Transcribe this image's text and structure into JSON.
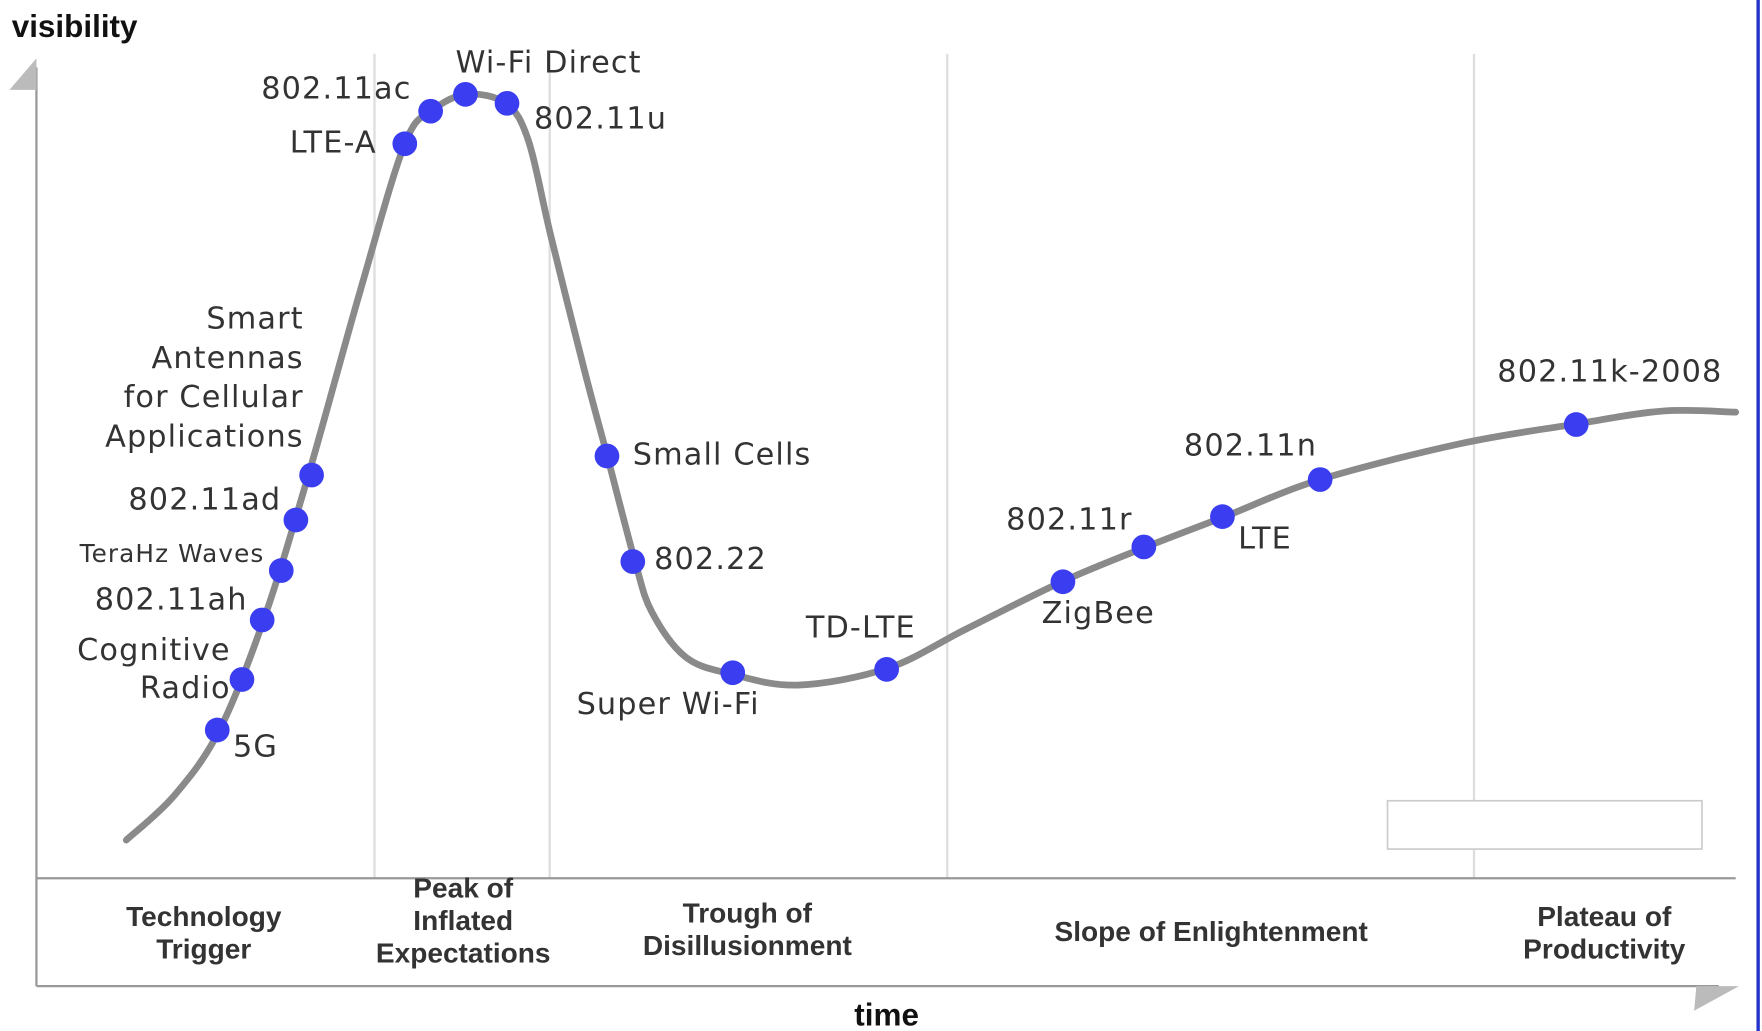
{
  "axes": {
    "y_label": "visibility",
    "x_label": "time"
  },
  "phases": [
    [
      "Technology",
      "Trigger"
    ],
    [
      "Peak of",
      "Inflated",
      "Expectations"
    ],
    [
      "Trough of",
      "Disillusionment"
    ],
    [
      "Slope of Enlightenment"
    ],
    [
      "Plateau of",
      "Productivity"
    ]
  ],
  "technologies": [
    [
      "5G"
    ],
    [
      "Cognitive",
      "Radio"
    ],
    [
      "802.11ah"
    ],
    [
      "TeraHz Waves"
    ],
    [
      "802.11ad"
    ],
    [
      "Smart",
      "Antennas",
      "for Cellular",
      "Applications"
    ],
    [
      "LTE-A"
    ],
    [
      "802.11ac"
    ],
    [
      "Wi-Fi Direct"
    ],
    [
      "802.11u"
    ],
    [
      "Small Cells"
    ],
    [
      "802.22"
    ],
    [
      "Super Wi-Fi"
    ],
    [
      "TD-LTE"
    ],
    [
      "ZigBee"
    ],
    [
      "802.11r"
    ],
    [
      "LTE"
    ],
    [
      "802.11n"
    ],
    [
      "802.11k-2008"
    ]
  ]
}
